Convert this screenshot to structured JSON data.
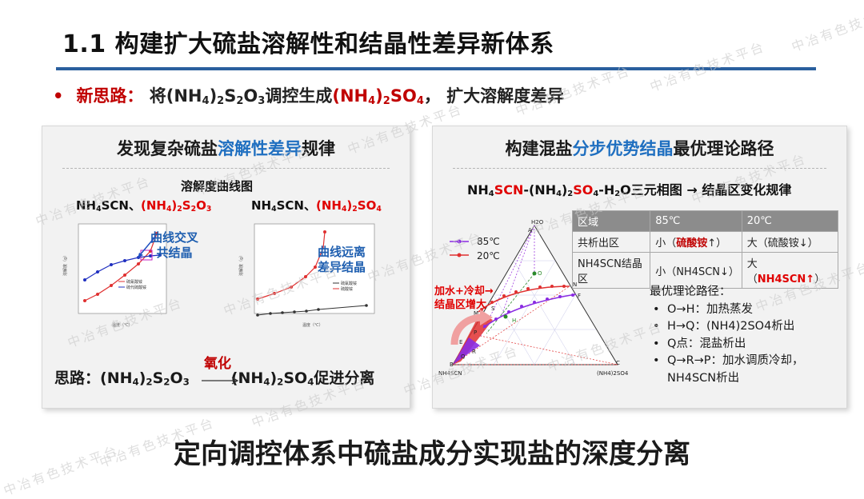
{
  "header": {
    "title": "1.1 构建扩大硫盐溶解性和结晶性差异新体系"
  },
  "bullet": {
    "label": "新思路：",
    "text_pre": "将(NH",
    "s1": "4",
    "t2": ")",
    "s2": "2",
    "t3": "S",
    "s3": "2",
    "t4": "O",
    "s4": "3",
    "t5": "调控生成",
    "red_pre": "(NH",
    "rs1": "4",
    "red_mid": ")",
    "rs2": "2",
    "red_end": "SO",
    "rs3": "4",
    "text_post": "， 扩大溶解度差异"
  },
  "left_panel": {
    "title_pre": "发现复杂硫盐",
    "title_blue": "溶解性差异",
    "title_post": "规律",
    "chart_heading": "溶解度曲线图",
    "chart1_label_a": "NH",
    "chart1_label_a_sub": "4",
    "chart1_label_b": "SCN、",
    "chart1_label_red_a": "(NH",
    "chart1_label_red_s1": "4",
    "chart1_label_red_b": ")",
    "chart1_label_red_s2": "2",
    "chart1_label_red_c": "S",
    "chart1_label_red_s3": "2",
    "chart1_label_red_d": "O",
    "chart1_label_red_s4": "3",
    "chart2_label_a": "NH",
    "chart2_label_a_sub": "4",
    "chart2_label_b": "SCN、",
    "chart2_label_red_a": "(NH",
    "chart2_label_red_s1": "4",
    "chart2_label_red_b": ")",
    "chart2_label_red_s2": "2",
    "chart2_label_red_c": "SO",
    "chart2_label_red_s3": "4",
    "note1_line1": "曲线交叉",
    "note1_line2": "共结晶",
    "note2_line1": "曲线远离",
    "note2_line2": "差异结晶",
    "axis_x": "温度（℃）",
    "axis_y": "溶解度（g）",
    "legend1_a": "硫氰酸铵",
    "legend1_b": "硫代硫酸铵",
    "legend2_a": "硫氰酸铵",
    "legend2_b": "硫酸铵",
    "idea_label": "思路：",
    "idea_left_a": "(NH",
    "idea_left_s1": "4",
    "idea_left_b": ")",
    "idea_left_s2": "2",
    "idea_left_c": "S",
    "idea_left_s3": "2",
    "idea_left_d": "O",
    "idea_left_s4": "3",
    "idea_arrow_label": "氧化",
    "idea_right_a": "(NH",
    "idea_right_s1": "4",
    "idea_right_b": ")",
    "idea_right_s2": "2",
    "idea_right_c": "SO",
    "idea_right_s3": "4",
    "idea_right_d": "促进分离"
  },
  "right_panel": {
    "title_pre": "构建混盐",
    "title_blue": "分步优势结晶",
    "title_post": "最优理论路径",
    "diagram_heading_a": "NH",
    "diagram_heading_s1": "4",
    "diagram_heading_red": "SCN",
    "diagram_heading_b": "-(NH",
    "diagram_heading_s2": "4",
    "diagram_heading_c": ")",
    "diagram_heading_s3": "2",
    "diagram_heading_red2": "SO",
    "diagram_heading_s4": "4",
    "diagram_heading_d": "-H",
    "diagram_heading_s5": "2",
    "diagram_heading_e": "O三元相图 → 结晶区变化规律",
    "legend_85": "85℃",
    "legend_20": "20℃",
    "arrow_note_line1": "加水+冷却→",
    "arrow_note_line2": "结晶区增大",
    "vertex_top": "H2O",
    "vertex_left": "NH4SCN",
    "vertex_right": "(NH4)2SO4",
    "point_labels": [
      "A",
      "B",
      "C",
      "O",
      "H",
      "Q",
      "N",
      "F",
      "M",
      "E",
      "R",
      "P",
      "S"
    ],
    "table": {
      "header": [
        "区域",
        "85℃",
        "20℃"
      ],
      "rows": [
        {
          "c1": "共析出区",
          "c2_pre": "小（",
          "c2_red": "硫酸铵",
          "c2_post": "↑）",
          "c3": "大（硫酸铵↓）"
        },
        {
          "c1": "NH4SCN结晶区",
          "c2_pre": "小（NH4SCN↓）",
          "c2_red": "",
          "c2_post": "",
          "c3_pre": "大（",
          "c3_red": "NH4SCN↑",
          "c3_post": "）"
        }
      ]
    },
    "route_title": "最优理论路径：",
    "route_items": [
      "O→H：加热蒸发",
      "H→Q：(NH4)2SO4析出",
      "Q点：混盐析出",
      "Q→R→P：加水调质冷却，",
      "NH4SCN析出"
    ]
  },
  "bottom_banner": "定向调控体系中硫盐成分实现盐的深度分离",
  "watermark": "中冶有色技术平台",
  "colors": {
    "accent_blue": "#2a5f9e",
    "text_red": "#c00000",
    "highlight_blue": "#1f6fc0",
    "series_red": "#e03030",
    "series_blue": "#2030c0",
    "series_purple": "#8a2be2",
    "panel_bg": "#f2f2f2"
  }
}
